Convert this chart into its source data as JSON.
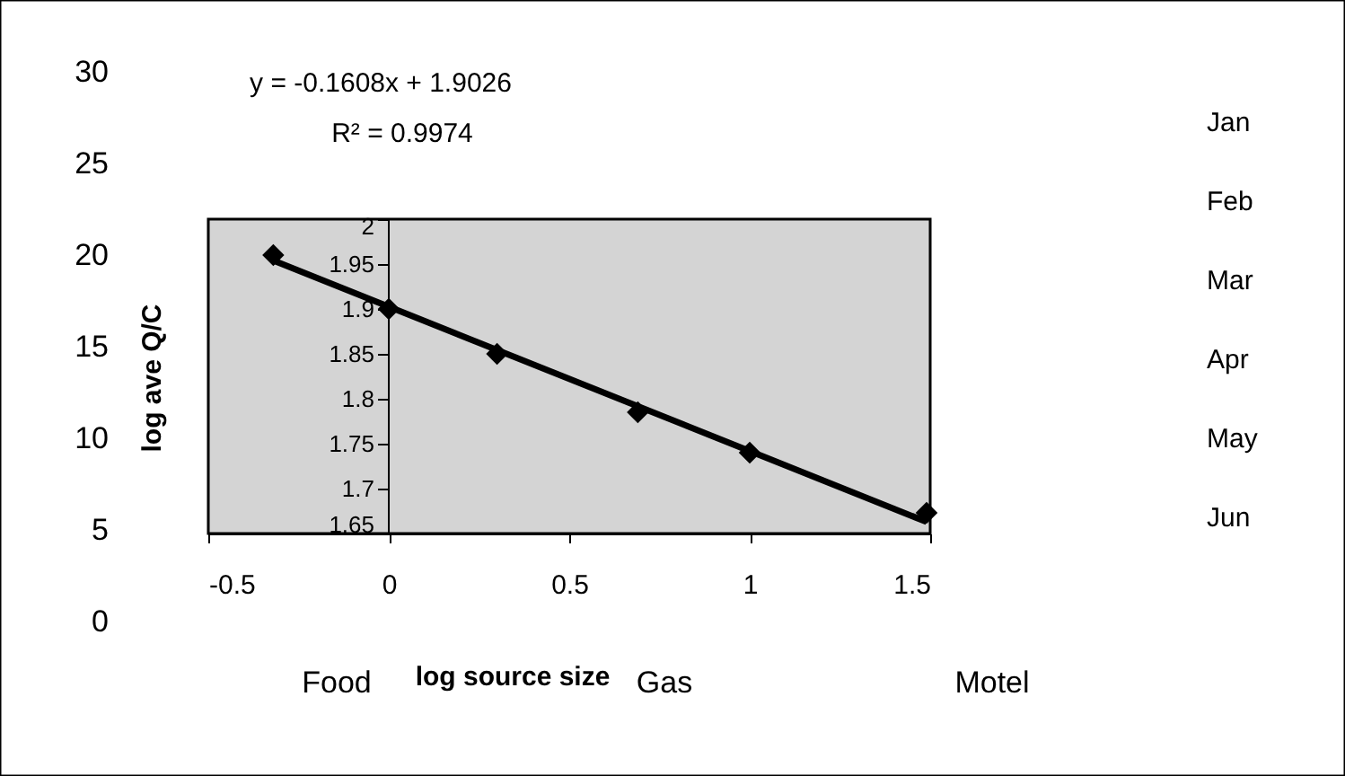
{
  "chart_data": [
    {
      "type": "scatter",
      "xlabel": "log source size",
      "ylabel": "log ave Q/C",
      "xlim": [
        -0.5,
        1.5
      ],
      "xticks": [
        -0.5,
        0,
        0.5,
        1,
        1.5
      ],
      "ylim": [
        1.65,
        2
      ],
      "yticks": [
        1.65,
        1.7,
        1.75,
        1.8,
        1.85,
        1.9,
        1.95,
        2
      ],
      "series": [
        {
          "type": "scatter",
          "color": "#000000",
          "x": [
            -0.32,
            0,
            0.3,
            0.69,
            1.0,
            1.49
          ],
          "values": [
            1.96,
            1.9,
            1.85,
            1.785,
            1.74,
            1.673
          ]
        },
        {
          "type": "line",
          "color": "#000000",
          "marker": "none",
          "x": [
            -0.32,
            1.49
          ],
          "values": [
            1.954,
            1.663
          ]
        }
      ],
      "marker": "diamond",
      "line_style": "solid",
      "grid": false,
      "annotations": [
        "y = -0.1608x + 1.9026",
        "R² = 0.9974"
      ]
    },
    {
      "type": "bar",
      "categories": [
        "Food",
        "Gas",
        "Motel"
      ],
      "ylim": [
        0,
        30
      ],
      "yticks": [
        0,
        5,
        10,
        15,
        20,
        25,
        30
      ],
      "values": [
        null,
        null,
        null
      ],
      "annotations": [
        "Jan",
        "Feb",
        "Mar",
        "Apr",
        "May",
        "Jun"
      ],
      "grid": false
    }
  ]
}
